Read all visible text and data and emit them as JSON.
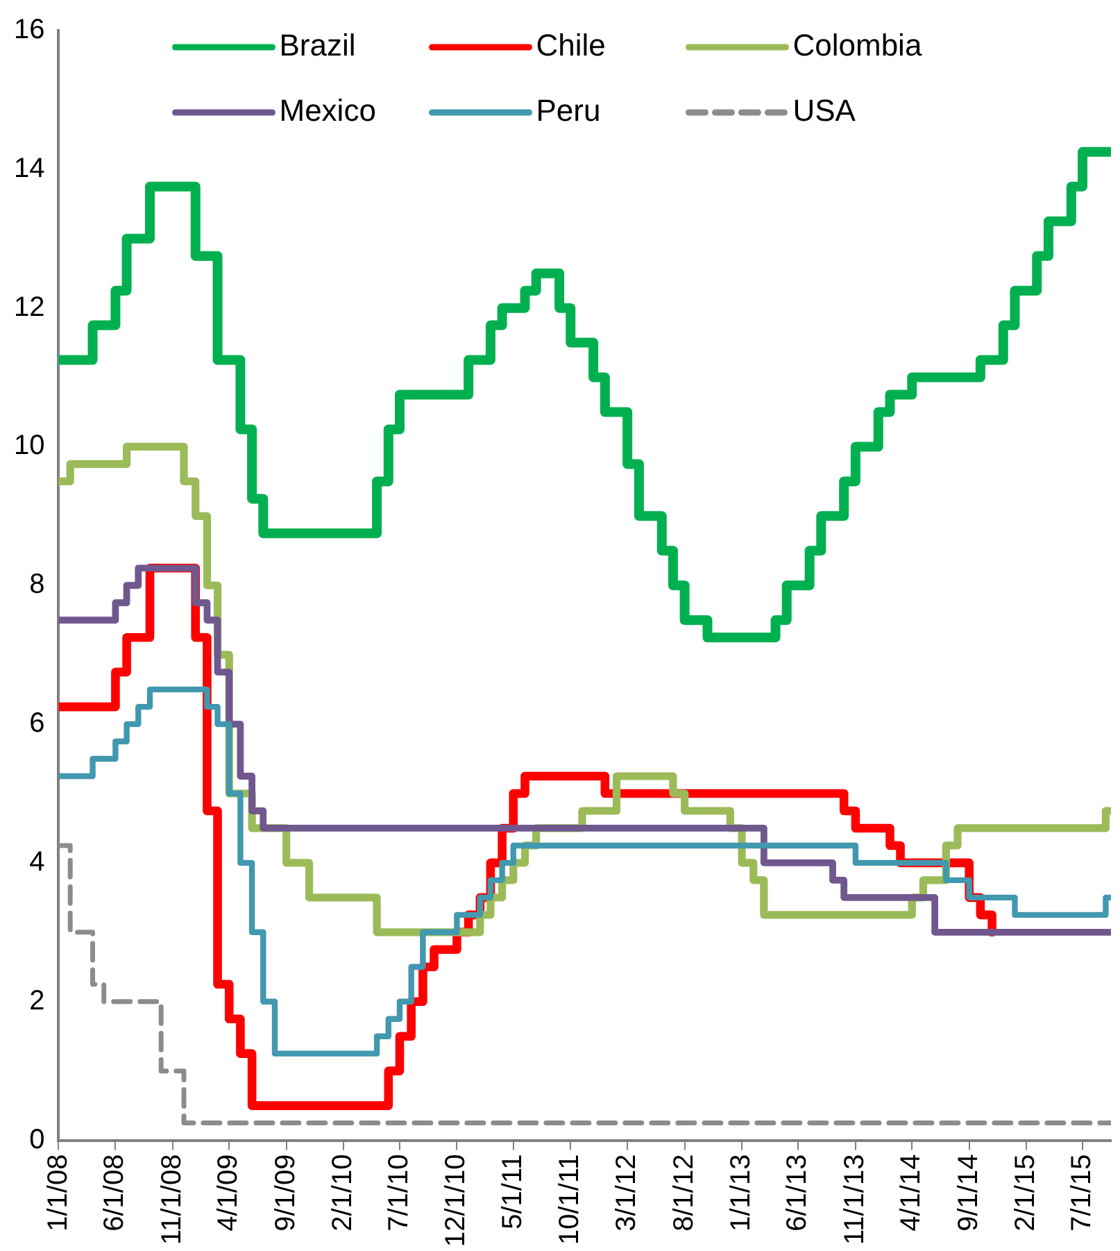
{
  "chart_data": {
    "type": "step",
    "xlim": [
      "2008-01",
      "2015-09-15"
    ],
    "ylim": [
      0,
      16
    ],
    "yticks": [
      0,
      2,
      4,
      6,
      8,
      10,
      12,
      14,
      16
    ],
    "xticks": [
      {
        "value": "2008-01",
        "label": "1/1/08"
      },
      {
        "value": "2008-06",
        "label": "6/1/08"
      },
      {
        "value": "2008-11",
        "label": "11/1/08"
      },
      {
        "value": "2009-04",
        "label": "4/1/09"
      },
      {
        "value": "2009-09",
        "label": "9/1/09"
      },
      {
        "value": "2010-02",
        "label": "2/1/10"
      },
      {
        "value": "2010-07",
        "label": "7/1/10"
      },
      {
        "value": "2010-12",
        "label": "12/1/10"
      },
      {
        "value": "2011-05",
        "label": "5/1/11"
      },
      {
        "value": "2011-10",
        "label": "10/1/11"
      },
      {
        "value": "2012-03",
        "label": "3/1/12"
      },
      {
        "value": "2012-08",
        "label": "8/1/12"
      },
      {
        "value": "2013-01",
        "label": "1/1/13"
      },
      {
        "value": "2013-06",
        "label": "6/1/13"
      },
      {
        "value": "2013-11",
        "label": "11/1/13"
      },
      {
        "value": "2014-04",
        "label": "4/1/14"
      },
      {
        "value": "2014-09",
        "label": "9/1/14"
      },
      {
        "value": "2015-02",
        "label": "2/1/15"
      },
      {
        "value": "2015-07",
        "label": "7/1/15"
      }
    ],
    "grid": false,
    "legend": "top",
    "line_style": "solid",
    "marker": "none",
    "series": [
      {
        "name": "Brazil",
        "color": "#00b050",
        "x": [
          "2008-01",
          "2008-04",
          "2008-06",
          "2008-07",
          "2008-09",
          "2009-01",
          "2009-03",
          "2009-05",
          "2009-06",
          "2009-07",
          "2010-05",
          "2010-06",
          "2010-07",
          "2011-01",
          "2011-03",
          "2011-04",
          "2011-06",
          "2011-07",
          "2011-09",
          "2011-10",
          "2011-12",
          "2012-01",
          "2012-03",
          "2012-04",
          "2012-06",
          "2012-07",
          "2012-08",
          "2012-10",
          "2013-04",
          "2013-05",
          "2013-07",
          "2013-08",
          "2013-10",
          "2013-11",
          "2014-01",
          "2014-02",
          "2014-04",
          "2014-10",
          "2014-12",
          "2015-01",
          "2015-03",
          "2015-04",
          "2015-06",
          "2015-07",
          "2015-09-15"
        ],
        "values": [
          11.25,
          11.75,
          12.25,
          13,
          13.75,
          12.75,
          11.25,
          10.25,
          9.25,
          8.75,
          9.5,
          10.25,
          10.75,
          11.25,
          11.75,
          12,
          12.25,
          12.5,
          12,
          11.5,
          11,
          10.5,
          9.75,
          9,
          8.5,
          8,
          7.5,
          7.25,
          7.5,
          8,
          8.5,
          9,
          9.5,
          10,
          10.5,
          10.75,
          11,
          11.25,
          11.75,
          12.25,
          12.75,
          13.25,
          13.75,
          14.25,
          14.25
        ]
      },
      {
        "name": "Chile",
        "color": "#ff0000",
        "x": [
          "2008-01",
          "2008-06",
          "2008-07",
          "2008-09",
          "2009-01",
          "2009-02",
          "2009-03",
          "2009-04",
          "2009-05",
          "2009-06",
          "2010-06",
          "2010-07",
          "2010-08",
          "2010-09",
          "2010-10",
          "2010-12",
          "2011-01",
          "2011-02",
          "2011-03",
          "2011-04",
          "2011-05",
          "2011-06",
          "2012-01",
          "2013-10",
          "2013-11",
          "2014-02",
          "2014-03",
          "2014-09",
          "2014-10",
          "2014-11"
        ],
        "values": [
          6.25,
          6.75,
          7.25,
          8.25,
          7.25,
          4.75,
          2.25,
          1.75,
          1.25,
          0.5,
          1,
          1.5,
          2,
          2.5,
          2.75,
          3,
          3.25,
          3.5,
          4,
          4.5,
          5,
          5.25,
          5,
          4.75,
          4.5,
          4.25,
          4,
          3.5,
          3.25,
          3
        ]
      },
      {
        "name": "Colombia",
        "color": "#9bbb59",
        "x": [
          "2008-01",
          "2008-02",
          "2008-07",
          "2008-12",
          "2009-01",
          "2009-02",
          "2009-03",
          "2009-04",
          "2009-06",
          "2009-09",
          "2009-11",
          "2010-05",
          "2011-02",
          "2011-03",
          "2011-04",
          "2011-05",
          "2011-06",
          "2011-07",
          "2011-11",
          "2012-02",
          "2012-07",
          "2012-08",
          "2012-12",
          "2013-01",
          "2013-02",
          "2013-03",
          "2014-04",
          "2014-05",
          "2014-07",
          "2014-08",
          "2015-09",
          "2015-09-15"
        ],
        "values": [
          9.5,
          9.75,
          10,
          9.5,
          9,
          8,
          7,
          5,
          4.5,
          4,
          3.5,
          3,
          3.25,
          3.5,
          3.75,
          4,
          4.25,
          4.5,
          4.75,
          5.25,
          5,
          4.75,
          4.5,
          4,
          3.75,
          3.25,
          3.5,
          3.75,
          4.25,
          4.5,
          4.75,
          4.75
        ]
      },
      {
        "name": "Mexico",
        "color": "#70588f",
        "x": [
          "2008-01",
          "2008-06",
          "2008-07",
          "2008-08",
          "2009-01",
          "2009-02",
          "2009-03",
          "2009-04",
          "2009-05",
          "2009-06",
          "2009-07",
          "2013-03",
          "2013-09",
          "2013-10",
          "2014-06",
          "2015-09-15"
        ],
        "values": [
          7.5,
          7.75,
          8,
          8.25,
          7.75,
          7.5,
          6.75,
          6,
          5.25,
          4.75,
          4.5,
          4,
          3.75,
          3.5,
          3,
          3
        ]
      },
      {
        "name": "Peru",
        "color": "#4198af",
        "x": [
          "2008-01",
          "2008-04",
          "2008-06",
          "2008-07",
          "2008-08",
          "2008-09",
          "2009-02",
          "2009-03",
          "2009-04",
          "2009-05",
          "2009-06",
          "2009-07",
          "2009-08",
          "2010-05",
          "2010-06",
          "2010-07",
          "2010-08",
          "2010-09",
          "2010-12",
          "2011-02",
          "2011-03",
          "2011-04",
          "2011-05",
          "2013-11",
          "2014-07",
          "2014-09",
          "2015-01",
          "2015-09",
          "2015-09-15"
        ],
        "values": [
          5.25,
          5.5,
          5.75,
          6,
          6.25,
          6.5,
          6.25,
          6,
          5,
          4,
          3,
          2,
          1.25,
          1.5,
          1.75,
          2,
          2.5,
          3,
          3.25,
          3.5,
          3.75,
          4,
          4.25,
          4,
          3.75,
          3.5,
          3.25,
          3.5,
          3.5
        ]
      },
      {
        "name": "USA",
        "color": "#8c8c8c",
        "line_style": "dashed",
        "x": [
          "2008-01",
          "2008-02",
          "2008-04",
          "2008-05",
          "2008-10",
          "2008-12",
          "2015-09-15"
        ],
        "values": [
          4.25,
          3,
          2.25,
          2,
          1,
          0.25,
          0.25
        ]
      }
    ]
  }
}
